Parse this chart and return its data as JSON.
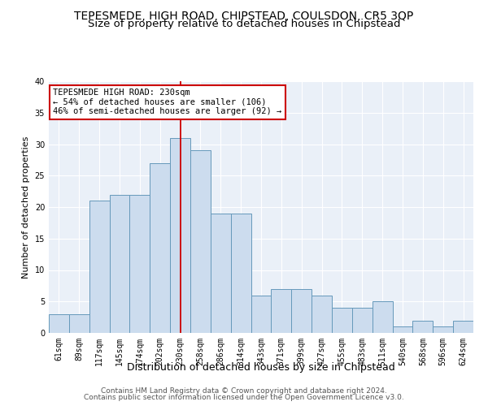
{
  "title": "TEPESMEDE, HIGH ROAD, CHIPSTEAD, COULSDON, CR5 3QP",
  "subtitle": "Size of property relative to detached houses in Chipstead",
  "xlabel": "Distribution of detached houses by size in Chipstead",
  "ylabel": "Number of detached properties",
  "categories": [
    "61sqm",
    "89sqm",
    "117sqm",
    "145sqm",
    "174sqm",
    "202sqm",
    "230sqm",
    "258sqm",
    "286sqm",
    "314sqm",
    "343sqm",
    "371sqm",
    "399sqm",
    "427sqm",
    "455sqm",
    "483sqm",
    "511sqm",
    "540sqm",
    "568sqm",
    "596sqm",
    "624sqm"
  ],
  "values": [
    3,
    3,
    21,
    22,
    22,
    27,
    31,
    29,
    19,
    19,
    6,
    7,
    7,
    6,
    4,
    4,
    5,
    1,
    2,
    1,
    2
  ],
  "highlight_index": 6,
  "bar_color": "#ccdcee",
  "bar_edge_color": "#6699bb",
  "highlight_line_color": "#cc0000",
  "annotation_box_edge": "#cc0000",
  "annotation_line1": "TEPESMEDE HIGH ROAD: 230sqm",
  "annotation_line2": "← 54% of detached houses are smaller (106)",
  "annotation_line3": "46% of semi-detached houses are larger (92) →",
  "ylim": [
    0,
    40
  ],
  "yticks": [
    0,
    5,
    10,
    15,
    20,
    25,
    30,
    35,
    40
  ],
  "footer_line1": "Contains HM Land Registry data © Crown copyright and database right 2024.",
  "footer_line2": "Contains public sector information licensed under the Open Government Licence v3.0.",
  "background_color": "#eaf0f8",
  "grid_color": "#ffffff",
  "title_fontsize": 10,
  "subtitle_fontsize": 9.5,
  "xlabel_fontsize": 9,
  "ylabel_fontsize": 8,
  "tick_fontsize": 7,
  "annotation_fontsize": 7.5,
  "footer_fontsize": 6.5
}
